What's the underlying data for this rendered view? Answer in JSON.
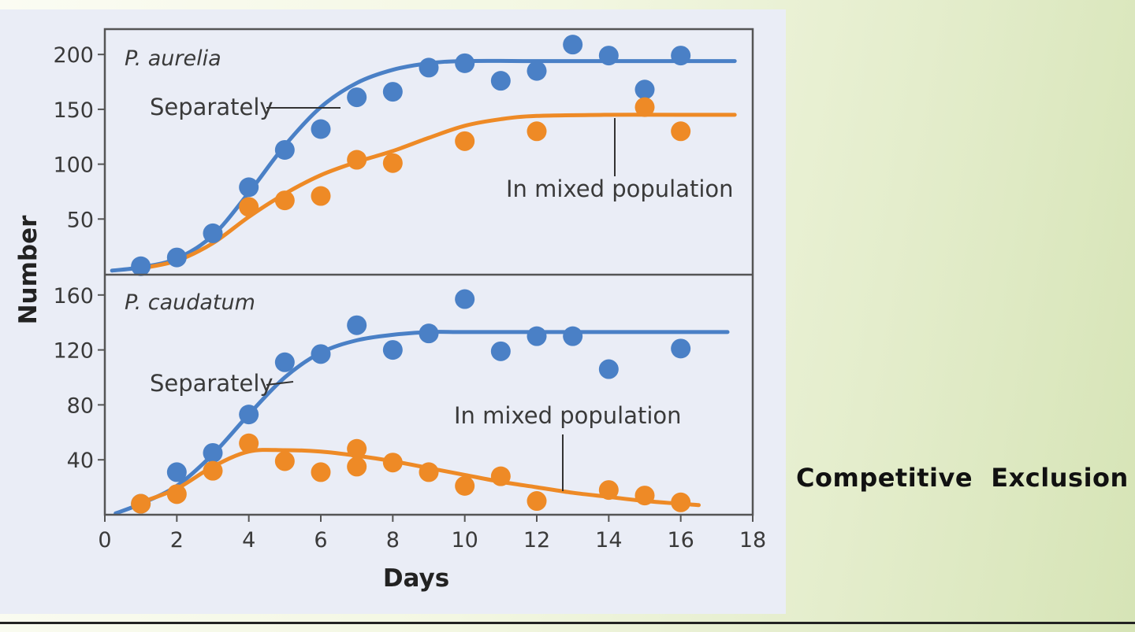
{
  "slide": {
    "caption": "Competitive  Exclusion"
  },
  "colors": {
    "separately": "#4a80c6",
    "mixed": "#ee8a26",
    "frame": "#555555",
    "text": "#3a3a3a"
  },
  "chart_data": {
    "type": "scatter",
    "xlabel": "Days",
    "ylabel": "Number",
    "xlim": [
      0,
      18
    ],
    "xticks": [
      0,
      2,
      4,
      6,
      8,
      10,
      12,
      14,
      16,
      18
    ],
    "panels": [
      {
        "species": "P. aurelia",
        "ylim": [
          0,
          225
        ],
        "yticks": [
          50,
          100,
          150,
          200
        ],
        "annotations": {
          "separately": "Separately",
          "mixed": "In mixed population"
        },
        "series": [
          {
            "name": "Separately",
            "points": [
              [
                1,
                7
              ],
              [
                2,
                15
              ],
              [
                3,
                37
              ],
              [
                4,
                79
              ],
              [
                5,
                113
              ],
              [
                6,
                132
              ],
              [
                7,
                161
              ],
              [
                8,
                166
              ],
              [
                9,
                188
              ],
              [
                10,
                192
              ],
              [
                11,
                176
              ],
              [
                12,
                185
              ],
              [
                13,
                209
              ],
              [
                14,
                199
              ],
              [
                15,
                168
              ],
              [
                16,
                199
              ]
            ],
            "fit": [
              [
                0.2,
                3
              ],
              [
                1,
                6
              ],
              [
                2,
                14
              ],
              [
                3,
                35
              ],
              [
                4,
                74
              ],
              [
                5,
                117
              ],
              [
                6,
                152
              ],
              [
                7,
                174
              ],
              [
                8,
                186
              ],
              [
                9,
                192
              ],
              [
                10,
                194
              ],
              [
                12,
                194
              ],
              [
                14,
                194
              ],
              [
                16,
                194
              ],
              [
                17.5,
                194
              ]
            ]
          },
          {
            "name": "In mixed population",
            "points": [
              [
                4,
                61
              ],
              [
                5,
                67
              ],
              [
                6,
                71
              ],
              [
                7,
                104
              ],
              [
                8,
                101
              ],
              [
                10,
                121
              ],
              [
                12,
                130
              ],
              [
                15,
                152
              ],
              [
                16,
                130
              ]
            ],
            "fit": [
              [
                1,
                5
              ],
              [
                2,
                12
              ],
              [
                3,
                28
              ],
              [
                4,
                52
              ],
              [
                5,
                73
              ],
              [
                6,
                90
              ],
              [
                7,
                102
              ],
              [
                8,
                112
              ],
              [
                9,
                124
              ],
              [
                10,
                135
              ],
              [
                11,
                141
              ],
              [
                12,
                144
              ],
              [
                14,
                145
              ],
              [
                16,
                145
              ],
              [
                17.5,
                145
              ]
            ]
          }
        ]
      },
      {
        "species": "P. caudatum",
        "ylim": [
          0,
          175
        ],
        "yticks": [
          40,
          80,
          120,
          160
        ],
        "annotations": {
          "separately": "Separately",
          "mixed": "In mixed population"
        },
        "series": [
          {
            "name": "Separately",
            "points": [
              [
                1,
                8
              ],
              [
                2,
                31
              ],
              [
                3,
                45
              ],
              [
                4,
                73
              ],
              [
                5,
                111
              ],
              [
                6,
                117
              ],
              [
                7,
                138
              ],
              [
                8,
                120
              ],
              [
                9,
                132
              ],
              [
                10,
                157
              ],
              [
                11,
                119
              ],
              [
                12,
                130
              ],
              [
                13,
                130
              ],
              [
                14,
                106
              ],
              [
                16,
                121
              ]
            ],
            "fit": [
              [
                0.3,
                1
              ],
              [
                1,
                8
              ],
              [
                2,
                21
              ],
              [
                3,
                44
              ],
              [
                4,
                73
              ],
              [
                5,
                100
              ],
              [
                6,
                118
              ],
              [
                7,
                127
              ],
              [
                8,
                131
              ],
              [
                9,
                133
              ],
              [
                10,
                133
              ],
              [
                12,
                133
              ],
              [
                14,
                133
              ],
              [
                16,
                133
              ],
              [
                17.3,
                133
              ]
            ]
          },
          {
            "name": "In mixed population",
            "points": [
              [
                1,
                8
              ],
              [
                2,
                15
              ],
              [
                3,
                32
              ],
              [
                4,
                52
              ],
              [
                5,
                39
              ],
              [
                6,
                31
              ],
              [
                7,
                35
              ],
              [
                7,
                48
              ],
              [
                8,
                38
              ],
              [
                9,
                31
              ],
              [
                10,
                21
              ],
              [
                11,
                28
              ],
              [
                12,
                10
              ],
              [
                14,
                18
              ],
              [
                15,
                14
              ],
              [
                16,
                9
              ]
            ],
            "fit": [
              [
                1,
                9
              ],
              [
                2,
                19
              ],
              [
                3,
                35
              ],
              [
                4,
                46
              ],
              [
                5,
                47
              ],
              [
                6,
                46
              ],
              [
                7,
                43
              ],
              [
                8,
                39
              ],
              [
                9,
                34
              ],
              [
                10,
                29
              ],
              [
                11,
                24
              ],
              [
                12,
                20
              ],
              [
                13,
                16
              ],
              [
                14,
                13
              ],
              [
                15,
                10
              ],
              [
                16.5,
                7
              ]
            ]
          }
        ]
      }
    ]
  }
}
